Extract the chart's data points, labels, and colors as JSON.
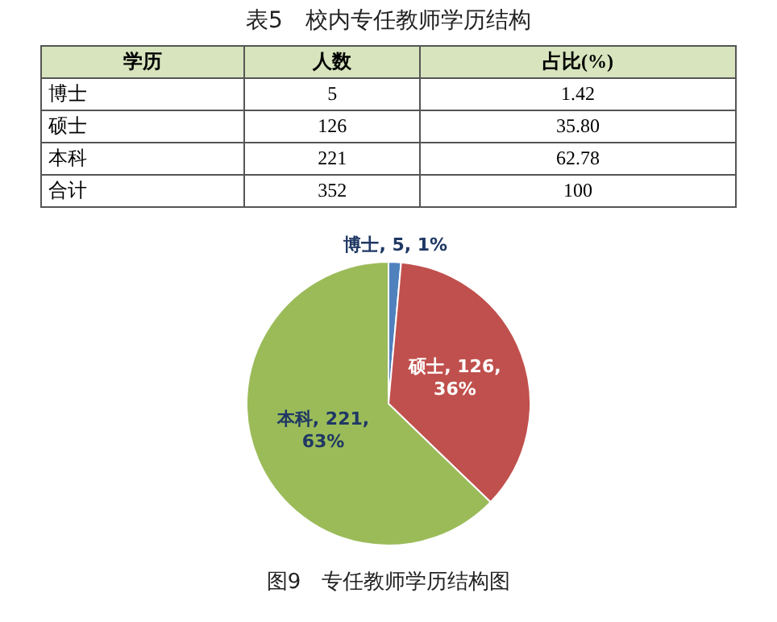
{
  "chart_data": [
    {
      "type": "other",
      "title": "表5　校内专任教师学历结构",
      "ylabel": "学历",
      "categories": [
        "人数",
        "占比(%)"
      ],
      "y_categories": [
        "博士",
        "硕士",
        "本科",
        "合计"
      ],
      "cell_labels": [
        [
          "5",
          "1.42"
        ],
        [
          "126",
          "35.80"
        ],
        [
          "221",
          "62.78"
        ],
        [
          "352",
          "100"
        ]
      ]
    },
    {
      "type": "pie",
      "title": "图9　专任教师学历结构图",
      "categories": [
        "博士",
        "硕士",
        "本科"
      ],
      "values": [
        5,
        126,
        221
      ],
      "colors": [
        "#4f81bd",
        "#c0504d",
        "#9bbb59"
      ],
      "value_labels": [
        "5, 1%",
        "126, 36%",
        "221, 63%"
      ]
    }
  ]
}
